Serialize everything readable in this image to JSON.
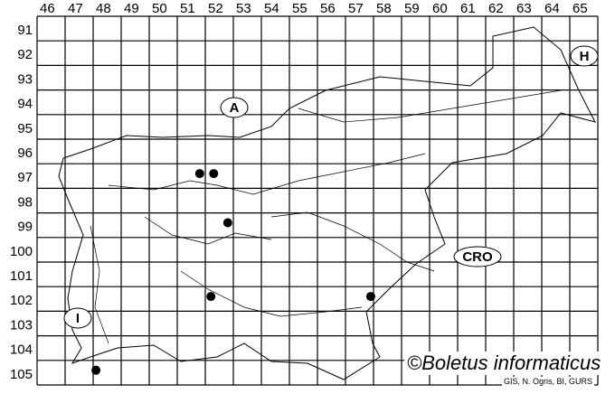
{
  "map": {
    "column_labels": [
      "46",
      "47",
      "48",
      "49",
      "50",
      "51",
      "52",
      "53",
      "54",
      "55",
      "56",
      "57",
      "58",
      "59",
      "60",
      "61",
      "62",
      "63",
      "64",
      "65"
    ],
    "row_labels": [
      "91",
      "92",
      "93",
      "94",
      "95",
      "96",
      "97",
      "98",
      "99",
      "100",
      "101",
      "102",
      "103",
      "104",
      "105"
    ],
    "country_labels": [
      {
        "id": "austria",
        "text": "A"
      },
      {
        "id": "hungary",
        "text": "H"
      },
      {
        "id": "croatia",
        "text": "CRO"
      },
      {
        "id": "italy",
        "text": "I"
      }
    ],
    "records": [
      {
        "col": 51.8,
        "row": 97.4
      },
      {
        "col": 52.3,
        "row": 97.4
      },
      {
        "col": 52.8,
        "row": 99.4
      },
      {
        "col": 52.2,
        "row": 102.4
      },
      {
        "col": 57.9,
        "row": 102.4
      },
      {
        "col": 48.1,
        "row": 105.4
      }
    ],
    "record_color": "#000000",
    "grid_color": "#000000"
  },
  "credit": "©Boletus informaticus",
  "source": "GIS, N. Ogris, BI, GURS"
}
